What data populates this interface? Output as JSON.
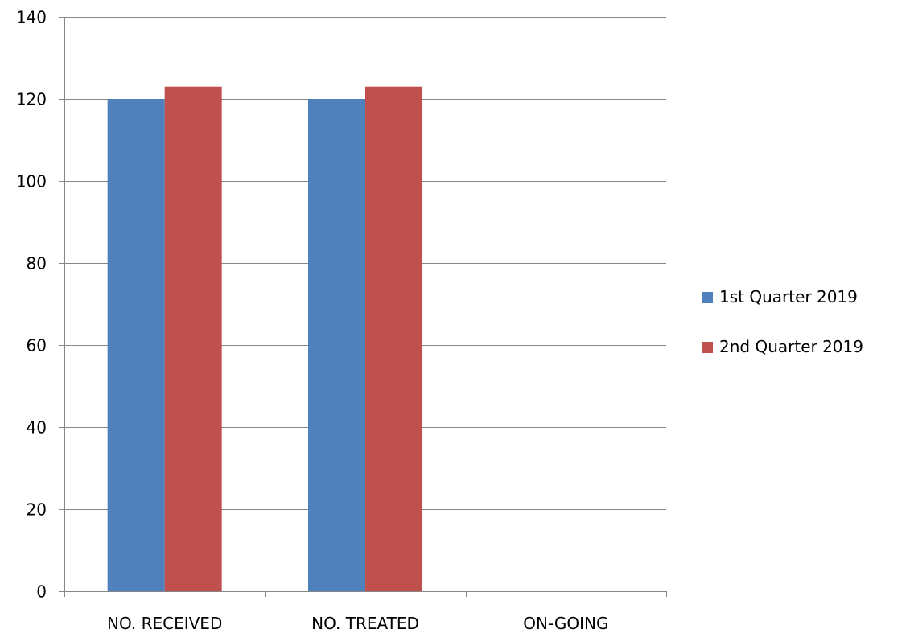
{
  "chart_data": {
    "type": "bar",
    "categories": [
      "NO. RECEIVED",
      "NO. TREATED",
      "ON-GOING"
    ],
    "series": [
      {
        "name": "1st Quarter 2019",
        "values": [
          120,
          120,
          0
        ],
        "color": "#4F81BD"
      },
      {
        "name": "2nd Quarter 2019",
        "values": [
          123,
          123,
          0
        ],
        "color": "#C0504D"
      }
    ],
    "y_ticks": [
      0,
      20,
      40,
      60,
      80,
      100,
      120,
      140
    ],
    "ylim": [
      0,
      140
    ],
    "grid": true,
    "legend_position": "right",
    "title": "",
    "xlabel": "",
    "ylabel": ""
  }
}
